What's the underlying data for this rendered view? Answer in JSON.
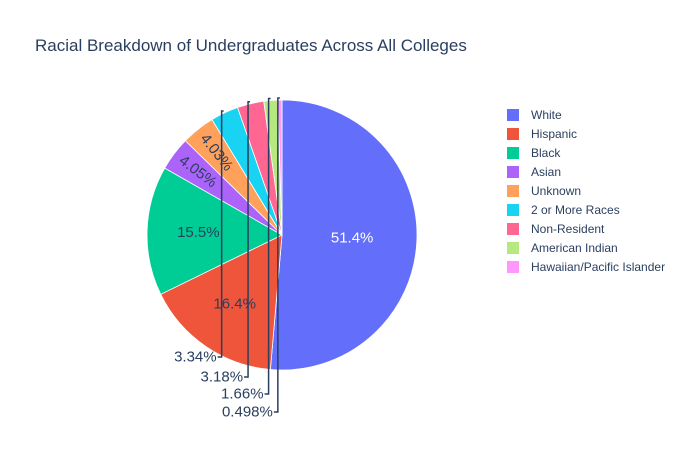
{
  "chart_data": {
    "type": "pie",
    "title": "Racial Breakdown of Undergraduates Across All Colleges",
    "legend_position": "right",
    "direction": "clockwise",
    "sort": "descending",
    "slices": [
      {
        "label": "White",
        "value": 51.4,
        "text": "51.4%",
        "color": "#636efa",
        "text_position": "inside"
      },
      {
        "label": "Hispanic",
        "value": 16.4,
        "text": "16.4%",
        "color": "#EF553B",
        "text_position": "inside"
      },
      {
        "label": "Black",
        "value": 15.5,
        "text": "15.5%",
        "color": "#00cc96",
        "text_position": "inside"
      },
      {
        "label": "Asian",
        "value": 4.05,
        "text": "4.05%",
        "color": "#ab63fa",
        "text_position": "inside"
      },
      {
        "label": "Unknown",
        "value": 4.03,
        "text": "4.03%",
        "color": "#FFA15A",
        "text_position": "inside"
      },
      {
        "label": "2 or More Races",
        "value": 3.34,
        "text": "3.34%",
        "color": "#19d3f3",
        "text_position": "outside"
      },
      {
        "label": "Non-Resident",
        "value": 3.18,
        "text": "3.18%",
        "color": "#FF6692",
        "text_position": "outside"
      },
      {
        "label": "American Indian",
        "value": 1.66,
        "text": "1.66%",
        "color": "#B6E880",
        "text_position": "outside"
      },
      {
        "label": "Hawaiian/Pacific Islander",
        "value": 0.498,
        "text": "0.498%",
        "color": "#FF97FF",
        "text_position": "outside"
      }
    ]
  }
}
